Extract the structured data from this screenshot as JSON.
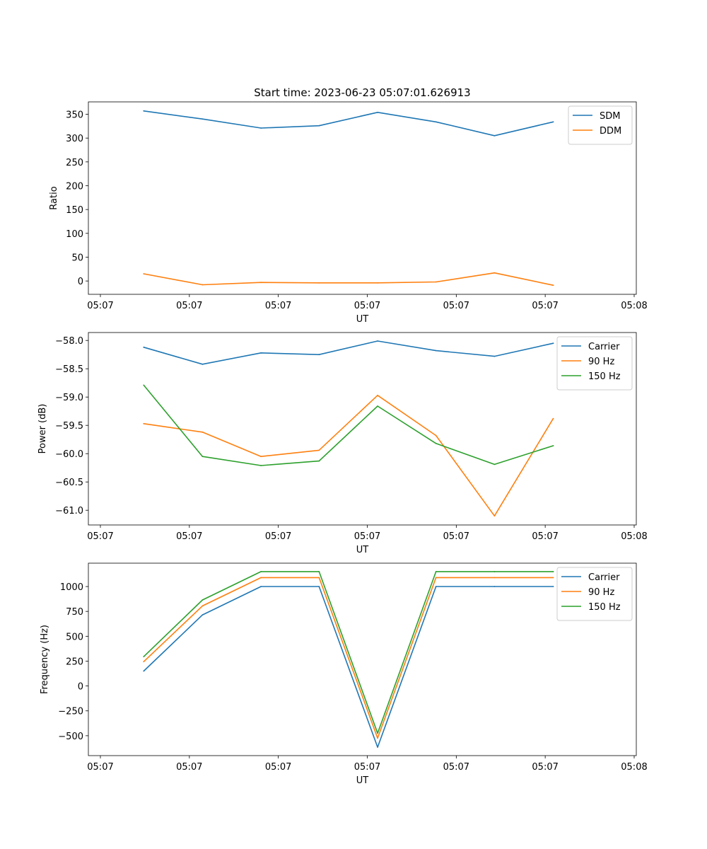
{
  "chart_data": [
    {
      "type": "line",
      "title": "Start time: 2023-06-23 05:07:01.626913",
      "xlabel": "UT",
      "ylabel": "Ratio",
      "xlim": [
        0,
        1
      ],
      "x_ticks": [
        0,
        0.1667,
        0.3333,
        0.5,
        0.6667,
        0.8333,
        1.0
      ],
      "x_tick_labels": [
        "05:07",
        "05:07",
        "05:07",
        "05:07",
        "05:07",
        "05:07",
        "05:08"
      ],
      "ylim": [
        -28,
        376
      ],
      "y_ticks": [
        0,
        50,
        100,
        150,
        200,
        250,
        300,
        350
      ],
      "y_tick_labels": [
        "0",
        "50",
        "100",
        "150",
        "200",
        "250",
        "300",
        "350"
      ],
      "legend": "top-right",
      "grid": false,
      "x": [
        0.0812,
        0.1913,
        0.3009,
        0.4097,
        0.5194,
        0.6287,
        0.7383,
        0.8484
      ],
      "series": [
        {
          "name": "SDM",
          "color": "#1f77b4",
          "values": [
            357,
            340,
            321,
            326,
            354,
            334,
            305,
            334
          ]
        },
        {
          "name": "DDM",
          "color": "#ff7f0e",
          "values": [
            15,
            -8,
            -3,
            -4,
            -4,
            -2,
            17,
            -9
          ]
        }
      ]
    },
    {
      "type": "line",
      "title": "",
      "xlabel": "UT",
      "ylabel": "Power (dB)",
      "xlim": [
        0,
        1
      ],
      "x_ticks": [
        0,
        0.1667,
        0.3333,
        0.5,
        0.6667,
        0.8333,
        1.0
      ],
      "x_tick_labels": [
        "05:07",
        "05:07",
        "05:07",
        "05:07",
        "05:07",
        "05:07",
        "05:08"
      ],
      "ylim": [
        -61.26,
        -57.86
      ],
      "y_ticks": [
        -58.0,
        -58.5,
        -59.0,
        -59.5,
        -60.0,
        -60.5,
        -61.0
      ],
      "y_tick_labels": [
        "−58.0",
        "−58.5",
        "−59.0",
        "−59.5",
        "−60.0",
        "−60.5",
        "−61.0"
      ],
      "legend": "top-right",
      "grid": false,
      "x": [
        0.0812,
        0.1913,
        0.3009,
        0.4097,
        0.5194,
        0.6287,
        0.7383,
        0.8484
      ],
      "series": [
        {
          "name": "Carrier",
          "color": "#1f77b4",
          "values": [
            -58.12,
            -58.42,
            -58.22,
            -58.25,
            -58.01,
            -58.18,
            -58.28,
            -58.05
          ]
        },
        {
          "name": "90 Hz",
          "color": "#ff7f0e",
          "values": [
            -59.47,
            -59.62,
            -60.05,
            -59.94,
            -58.97,
            -59.68,
            -61.1,
            -59.38
          ]
        },
        {
          "name": "150 Hz",
          "color": "#2ca02c",
          "values": [
            -58.79,
            -60.05,
            -60.21,
            -60.13,
            -59.16,
            -59.82,
            -60.19,
            -59.86
          ]
        }
      ]
    },
    {
      "type": "line",
      "title": "",
      "xlabel": "UT",
      "ylabel": "Frequency (Hz)",
      "xlim": [
        0,
        1
      ],
      "x_ticks": [
        0,
        0.1667,
        0.3333,
        0.5,
        0.6667,
        0.8333,
        1.0
      ],
      "x_tick_labels": [
        "05:07",
        "05:07",
        "05:07",
        "05:07",
        "05:07",
        "05:07",
        "05:08"
      ],
      "ylim": [
        -700,
        1235
      ],
      "y_ticks": [
        -500,
        -250,
        0,
        250,
        500,
        750,
        1000
      ],
      "y_tick_labels": [
        "−500",
        "−250",
        "0",
        "250",
        "500",
        "750",
        "1000"
      ],
      "legend": "top-right",
      "grid": false,
      "x": [
        0.0812,
        0.1913,
        0.3009,
        0.4097,
        0.5194,
        0.6287,
        0.7383,
        0.8484
      ],
      "series": [
        {
          "name": "Carrier",
          "color": "#1f77b4",
          "values": [
            150,
            715,
            1000,
            1000,
            -615,
            1000,
            1000,
            1000
          ]
        },
        {
          "name": "90 Hz",
          "color": "#ff7f0e",
          "values": [
            245,
            805,
            1090,
            1090,
            -525,
            1090,
            1090,
            1090
          ]
        },
        {
          "name": "150 Hz",
          "color": "#2ca02c",
          "values": [
            295,
            865,
            1150,
            1150,
            -475,
            1150,
            1150,
            1150
          ]
        }
      ]
    }
  ]
}
